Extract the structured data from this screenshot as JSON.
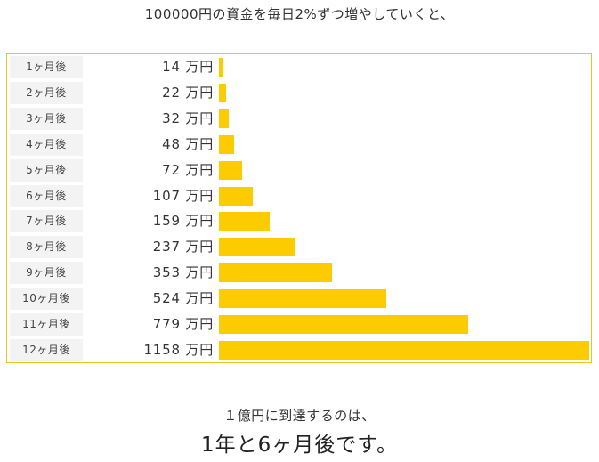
{
  "headline": "100000円の資金を毎日2%ずつ増やしていくと、",
  "chart_data": {
    "type": "bar",
    "orientation": "horizontal",
    "unit": "万円",
    "categories": [
      "1ヶ月後",
      "2ヶ月後",
      "3ヶ月後",
      "4ヶ月後",
      "5ヶ月後",
      "6ヶ月後",
      "7ヶ月後",
      "8ヶ月後",
      "9ヶ月後",
      "10ヶ月後",
      "11ヶ月後",
      "12ヶ月後"
    ],
    "values": [
      14,
      22,
      32,
      48,
      72,
      107,
      159,
      237,
      353,
      524,
      779,
      1158
    ],
    "bar_color": "#fccb00",
    "border_color": "#e8c81c"
  },
  "conclusion": {
    "line1": "１億円に到達するのは、",
    "line2": "1年と6ヶ月後です。"
  }
}
